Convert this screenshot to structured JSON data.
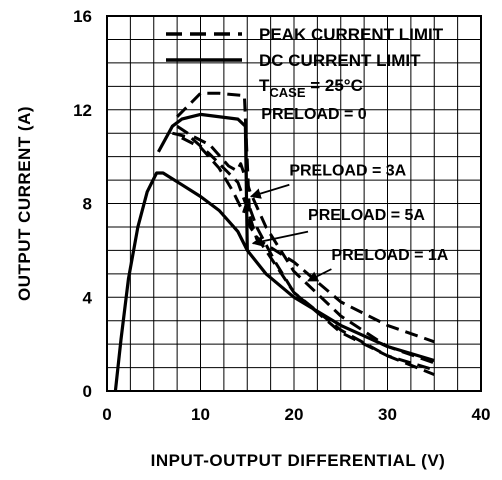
{
  "chart_data": {
    "type": "line",
    "xlabel": "INPUT-OUTPUT DIFFERENTIAL (V)",
    "ylabel": "OUTPUT CURRENT (A)",
    "xlim": [
      0,
      40
    ],
    "ylim": [
      0,
      16
    ],
    "x_ticks": [
      "0",
      "10",
      "20",
      "30",
      "40"
    ],
    "y_ticks": [
      "0",
      "4",
      "8",
      "12",
      "16"
    ],
    "grid": true,
    "legend": {
      "placement": "top-right",
      "entries": [
        {
          "label": "PEAK CURRENT LIMIT",
          "style": "dashed"
        },
        {
          "label": "DC CURRENT LIMIT",
          "style": "solid"
        }
      ],
      "condition_main": "T",
      "condition_sub": "CASE",
      "condition_value": " = 25°C"
    },
    "annotations": [
      {
        "text": "PRELOAD = 0",
        "x": 16.5,
        "y": 11.6
      },
      {
        "text": "PRELOAD = 3A",
        "x": 19.5,
        "y": 9.2
      },
      {
        "text": "PRELOAD = 5A",
        "x": 21.5,
        "y": 7.3
      },
      {
        "text": "PRELOAD = 1A",
        "x": 24.0,
        "y": 5.6
      }
    ],
    "series": [
      {
        "style": "solid",
        "points": [
          [
            0.9,
            0
          ],
          [
            1.5,
            2.2
          ],
          [
            2.3,
            4.8
          ],
          [
            3.3,
            7.0
          ],
          [
            4.3,
            8.5
          ],
          [
            5.3,
            9.3
          ],
          [
            6.0,
            9.3
          ],
          [
            8.0,
            8.8
          ],
          [
            10,
            8.3
          ],
          [
            12,
            7.7
          ],
          [
            14,
            6.8
          ],
          [
            15,
            6.0
          ],
          [
            17,
            5.0
          ],
          [
            20,
            4.0
          ],
          [
            25,
            2.8
          ],
          [
            30,
            1.9
          ],
          [
            35,
            1.3
          ]
        ]
      },
      {
        "style": "solid",
        "points": [
          [
            5.5,
            10.2
          ],
          [
            7.0,
            11.3
          ],
          [
            8.0,
            11.6
          ],
          [
            10,
            11.8
          ],
          [
            14,
            11.6
          ],
          [
            14.8,
            11.3
          ],
          [
            15.0,
            6.0
          ]
        ]
      },
      {
        "style": "dashed",
        "points": [
          [
            7.5,
            11.7
          ],
          [
            9.0,
            12.3
          ],
          [
            10.0,
            12.7
          ],
          [
            12,
            12.7
          ],
          [
            14.7,
            12.6
          ],
          [
            15.3,
            7.0
          ],
          [
            17,
            6.0
          ],
          [
            20,
            4.2
          ],
          [
            25,
            2.6
          ],
          [
            30,
            1.5
          ],
          [
            35,
            0.7
          ]
        ]
      },
      {
        "style": "dashed",
        "points": [
          [
            7.5,
            11.3
          ],
          [
            9.0,
            10.9
          ],
          [
            11,
            10.5
          ],
          [
            13,
            9.6
          ],
          [
            13.9,
            9.4
          ],
          [
            14.3,
            9.7
          ],
          [
            15.3,
            8.5
          ],
          [
            17,
            7.0
          ],
          [
            20,
            5.1
          ],
          [
            25,
            3.2
          ],
          [
            30,
            1.9
          ],
          [
            35,
            1.2
          ]
        ]
      },
      {
        "style": "dashed",
        "points": [
          [
            7.0,
            11.0
          ],
          [
            9.0,
            10.8
          ],
          [
            11,
            10.1
          ],
          [
            13,
            9.3
          ],
          [
            14.0,
            8.9
          ],
          [
            15.0,
            7.8
          ],
          [
            16,
            6.5
          ],
          [
            18,
            6.0
          ],
          [
            20,
            5.5
          ],
          [
            25,
            3.8
          ],
          [
            30,
            2.8
          ],
          [
            35,
            2.1
          ]
        ]
      },
      {
        "style": "dashed",
        "points": [
          [
            8.0,
            10.8
          ],
          [
            10,
            10.4
          ],
          [
            12,
            9.5
          ],
          [
            13.5,
            8.5
          ],
          [
            14.6,
            7.6
          ],
          [
            15.0,
            8.1
          ],
          [
            16,
            7.0
          ],
          [
            18,
            5.5
          ],
          [
            20,
            4.2
          ],
          [
            25,
            2.5
          ],
          [
            30,
            1.5
          ],
          [
            35,
            0.9
          ]
        ]
      }
    ]
  }
}
